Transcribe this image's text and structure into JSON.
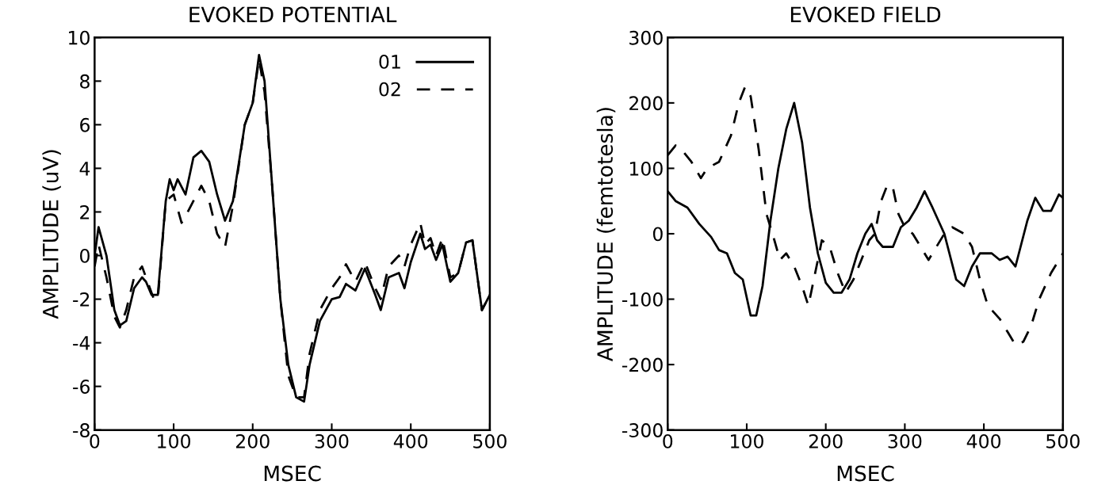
{
  "chart_data": [
    {
      "type": "line",
      "title": "EVOKED POTENTIAL",
      "xlabel": "MSEC",
      "ylabel": "AMPLITUDE (uV)",
      "xlim": [
        0,
        500
      ],
      "xticks": [
        0,
        100,
        200,
        300,
        400,
        500
      ],
      "ylim": [
        -8,
        10
      ],
      "yticks": [
        -8,
        -6,
        -4,
        -2,
        0,
        2,
        4,
        6,
        8,
        10
      ],
      "legend": "top right",
      "grid": false,
      "series": [
        {
          "name": "01",
          "color": "#000000",
          "line_style": "solid",
          "x": [
            0,
            5,
            15,
            25,
            32,
            40,
            50,
            60,
            65,
            72,
            80,
            90,
            95,
            100,
            105,
            115,
            125,
            135,
            145,
            155,
            165,
            175,
            190,
            200,
            208,
            215,
            225,
            235,
            245,
            255,
            265,
            272,
            285,
            300,
            310,
            318,
            330,
            342,
            355,
            362,
            372,
            385,
            392,
            400,
            412,
            418,
            425,
            432,
            440,
            450,
            460,
            470,
            478,
            490,
            500
          ],
          "values": [
            0,
            1.3,
            0,
            -2.5,
            -3.2,
            -3,
            -1.5,
            -1,
            -1.2,
            -1.8,
            -1.8,
            2.5,
            3.5,
            3,
            3.5,
            2.8,
            4.5,
            4.8,
            4.3,
            2.8,
            1.6,
            2.5,
            6,
            7,
            9.2,
            8,
            3,
            -2,
            -5,
            -6.5,
            -6.7,
            -5,
            -3,
            -2,
            -1.9,
            -1.3,
            -1.6,
            -0.6,
            -1.8,
            -2.5,
            -1,
            -0.8,
            -1.5,
            -0.3,
            1,
            0.3,
            0.5,
            -0.2,
            0.5,
            -1.2,
            -0.8,
            0.6,
            0.7,
            -2.5,
            -1.8
          ]
        },
        {
          "name": "02",
          "color": "#000000",
          "line_style": "dashed",
          "x": [
            0,
            5,
            15,
            25,
            32,
            40,
            50,
            60,
            65,
            75,
            80,
            90,
            100,
            110,
            115,
            125,
            135,
            145,
            155,
            165,
            175,
            190,
            200,
            208,
            215,
            225,
            235,
            245,
            255,
            265,
            272,
            285,
            300,
            310,
            318,
            330,
            342,
            355,
            362,
            372,
            385,
            392,
            400,
            412,
            418,
            425,
            432,
            440,
            450,
            460,
            470,
            478,
            490,
            500
          ],
          "values": [
            -0.5,
            0.5,
            -1,
            -2.8,
            -3.3,
            -2.5,
            -1,
            -0.5,
            -1,
            -2,
            -2,
            2.5,
            2.8,
            1.5,
            1.8,
            2.5,
            3.2,
            2.5,
            1,
            0.4,
            2.3,
            6,
            7,
            9,
            7.5,
            3,
            -2,
            -5.5,
            -6.5,
            -6.5,
            -4.5,
            -2.5,
            -1.5,
            -1,
            -0.4,
            -1.2,
            -0.3,
            -1.5,
            -2,
            -0.5,
            0,
            -0.5,
            0.5,
            1.5,
            0.5,
            0.8,
            0,
            0.8,
            -1,
            -0.8,
            0.6,
            0.7,
            -2.5,
            -1.8
          ]
        }
      ]
    },
    {
      "type": "line",
      "title": "EVOKED FIELD",
      "xlabel": "MSEC",
      "ylabel": "AMPLITUDE (femtotesla)",
      "xlim": [
        0,
        500
      ],
      "xticks": [
        0,
        100,
        200,
        300,
        400,
        500
      ],
      "ylim": [
        -300,
        300
      ],
      "yticks": [
        -300,
        -200,
        -100,
        0,
        100,
        200,
        300
      ],
      "grid": false,
      "series": [
        {
          "color": "#000000",
          "line_style": "solid",
          "x": [
            0,
            10,
            25,
            40,
            55,
            65,
            75,
            85,
            95,
            105,
            112,
            120,
            130,
            140,
            150,
            160,
            170,
            180,
            190,
            200,
            210,
            220,
            230,
            240,
            250,
            258,
            265,
            272,
            285,
            295,
            305,
            315,
            325,
            335,
            350,
            365,
            375,
            385,
            395,
            410,
            420,
            430,
            440,
            455,
            465,
            475,
            485,
            495,
            500
          ],
          "values": [
            65,
            50,
            40,
            15,
            -5,
            -25,
            -30,
            -60,
            -70,
            -125,
            -125,
            -80,
            20,
            100,
            160,
            200,
            140,
            40,
            -30,
            -75,
            -90,
            -90,
            -70,
            -30,
            0,
            15,
            -10,
            -20,
            -20,
            10,
            20,
            40,
            65,
            40,
            0,
            -70,
            -80,
            -50,
            -30,
            -30,
            -40,
            -35,
            -50,
            20,
            55,
            35,
            35,
            60,
            55
          ]
        },
        {
          "color": "#000000",
          "line_style": "dashed",
          "x": [
            0,
            10,
            20,
            30,
            42,
            50,
            65,
            80,
            90,
            98,
            105,
            115,
            125,
            135,
            142,
            150,
            160,
            170,
            178,
            190,
            195,
            205,
            215,
            225,
            235,
            245,
            255,
            262,
            270,
            278,
            285,
            292,
            300,
            310,
            320,
            330,
            340,
            350,
            360,
            375,
            385,
            395,
            405,
            420,
            430,
            440,
            450,
            460,
            470,
            485,
            500
          ],
          "values": [
            120,
            135,
            125,
            110,
            85,
            100,
            110,
            150,
            200,
            225,
            210,
            130,
            30,
            -10,
            -40,
            -30,
            -50,
            -80,
            -110,
            -40,
            -10,
            -20,
            -60,
            -90,
            -70,
            -40,
            -10,
            0,
            50,
            75,
            70,
            30,
            10,
            0,
            -20,
            -40,
            -20,
            0,
            10,
            0,
            -20,
            -70,
            -110,
            -130,
            -150,
            -170,
            -165,
            -140,
            -100,
            -60,
            -30
          ]
        }
      ]
    }
  ]
}
